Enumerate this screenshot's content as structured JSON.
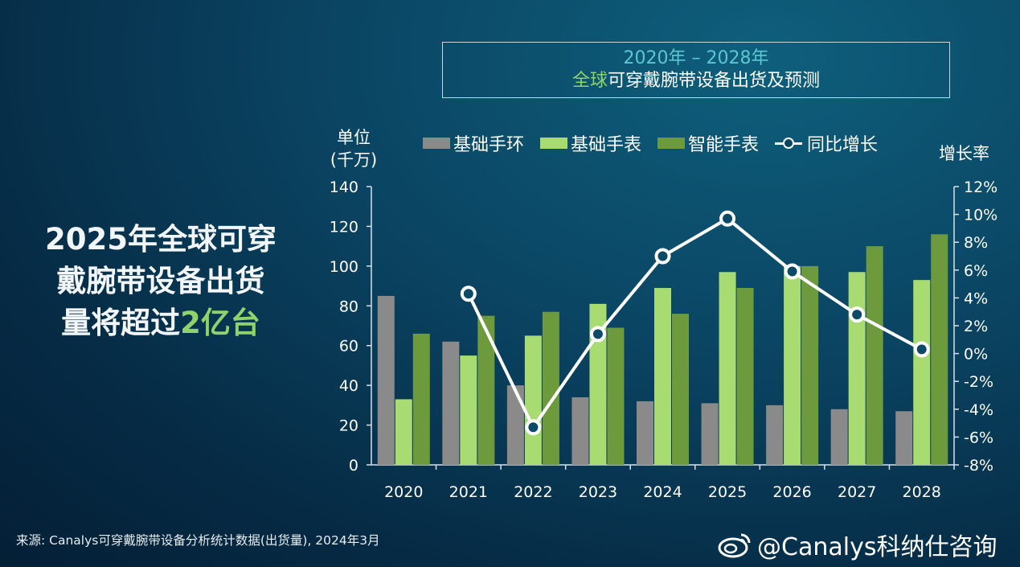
{
  "title": {
    "line1": "2020年 – 2028年",
    "line2_highlight": "全球",
    "line2_rest": "可穿戴腕带设备出货及预测"
  },
  "headline": {
    "line1": "2025年全球可穿",
    "line2": "戴腕带设备出货",
    "line3_prefix": "量将超过",
    "line3_highlight": "2亿台"
  },
  "axis": {
    "left_unit_line1": "单位",
    "left_unit_line2": "(千万)",
    "right_label": "增长率"
  },
  "source": "来源: Canalys可穿戴腕带设备分析统计数据(出货量), 2024年3月",
  "watermark": "@Canalys科纳仕咨询",
  "colors": {
    "basic_band": "#8a8a8a",
    "basic_watch": "#a8dc72",
    "smart_watch": "#6e9a3e",
    "growth_line": "#ffffff",
    "highlight_text": "#8fd36a"
  },
  "chart_data": {
    "type": "bar",
    "categories": [
      "2020",
      "2021",
      "2022",
      "2023",
      "2024",
      "2025",
      "2026",
      "2027",
      "2028"
    ],
    "series": [
      {
        "name": "基础手环",
        "type": "bar",
        "axis": "left",
        "values": [
          85,
          62,
          40,
          34,
          32,
          31,
          30,
          28,
          27
        ]
      },
      {
        "name": "基础手表",
        "type": "bar",
        "axis": "left",
        "values": [
          33,
          55,
          65,
          81,
          89,
          97,
          100,
          97,
          93
        ]
      },
      {
        "name": "智能手表",
        "type": "bar",
        "axis": "left",
        "values": [
          66,
          75,
          77,
          69,
          76,
          89,
          100,
          110,
          116
        ]
      },
      {
        "name": "同比增长",
        "type": "line",
        "axis": "right",
        "values": [
          null,
          4.3,
          -5.3,
          1.4,
          7.0,
          9.7,
          5.9,
          2.8,
          0.3
        ]
      }
    ],
    "y_left": {
      "ylim": [
        0,
        140
      ],
      "ticks": [
        "0",
        "20",
        "40",
        "60",
        "80",
        "100",
        "120",
        "140"
      ]
    },
    "y_right": {
      "ylim": [
        -8,
        12
      ],
      "ticks": [
        "-8%",
        "-6%",
        "-4%",
        "-2%",
        "0%",
        "2%",
        "4%",
        "6%",
        "8%",
        "10%",
        "12%"
      ]
    },
    "legend": "top",
    "grid": false
  }
}
